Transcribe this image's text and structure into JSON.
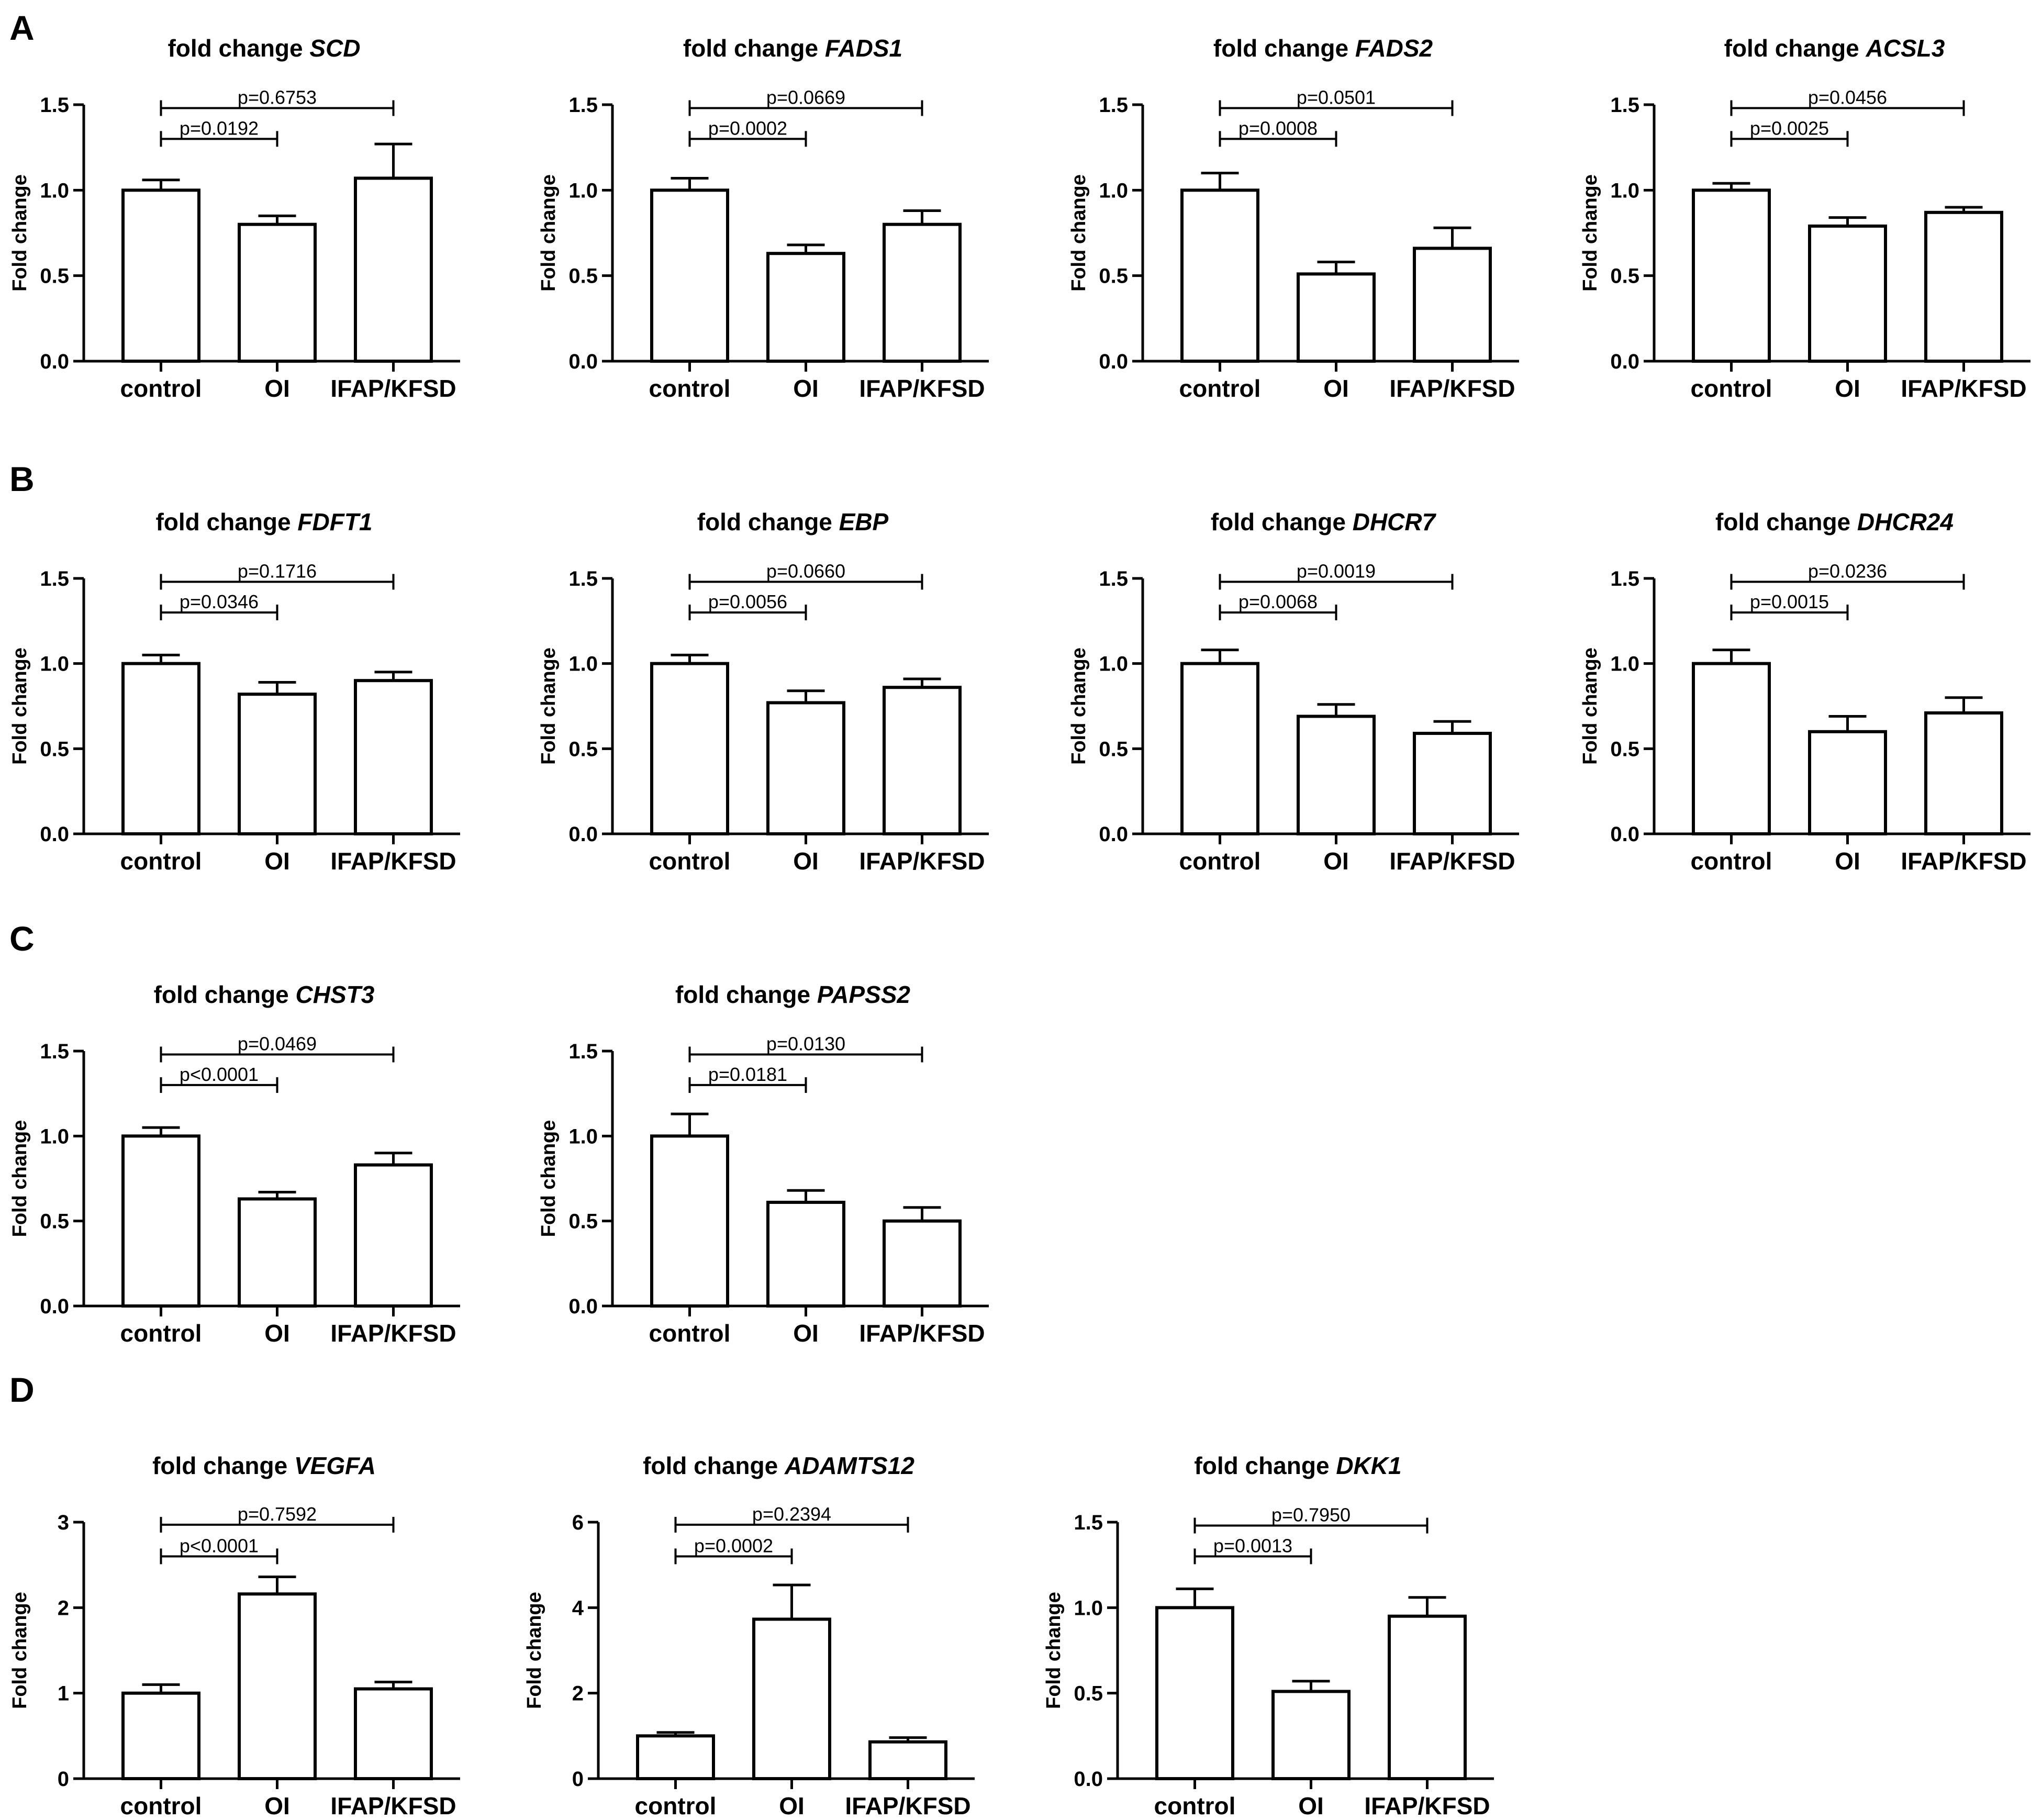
{
  "figure": {
    "panels": [
      "A",
      "B",
      "C",
      "D"
    ]
  },
  "chart_data": [
    {
      "type": "bar",
      "panel": "A",
      "title_prefix": "fold change",
      "gene": "SCD",
      "ylabel": "Fold change",
      "ylim": [
        0,
        1.5
      ],
      "yticks": [
        "0.0",
        "0.5",
        "1.0",
        "1.5"
      ],
      "categories": [
        "control",
        "OI",
        "IFAP/KFSD"
      ],
      "values": [
        1.0,
        0.8,
        1.07
      ],
      "errors": [
        0.06,
        0.05,
        0.2
      ],
      "comparisons": [
        {
          "label": "p=0.0192",
          "from": 0,
          "to": 1,
          "y": 1.3
        },
        {
          "label": "p=0.6753",
          "from": 0,
          "to": 2,
          "y": 1.48
        }
      ]
    },
    {
      "type": "bar",
      "panel": "A",
      "title_prefix": "fold change",
      "gene": "FADS1",
      "ylabel": "Fold change",
      "ylim": [
        0,
        1.5
      ],
      "yticks": [
        "0.0",
        "0.5",
        "1.0",
        "1.5"
      ],
      "categories": [
        "control",
        "OI",
        "IFAP/KFSD"
      ],
      "values": [
        1.0,
        0.63,
        0.8
      ],
      "errors": [
        0.07,
        0.05,
        0.08
      ],
      "comparisons": [
        {
          "label": "p=0.0002",
          "from": 0,
          "to": 1,
          "y": 1.3
        },
        {
          "label": "p=0.0669",
          "from": 0,
          "to": 2,
          "y": 1.48
        }
      ]
    },
    {
      "type": "bar",
      "panel": "A",
      "title_prefix": "fold change",
      "gene": "FADS2",
      "ylabel": "Fold change",
      "ylim": [
        0,
        1.5
      ],
      "yticks": [
        "0.0",
        "0.5",
        "1.0",
        "1.5"
      ],
      "categories": [
        "control",
        "OI",
        "IFAP/KFSD"
      ],
      "values": [
        1.0,
        0.51,
        0.66
      ],
      "errors": [
        0.1,
        0.07,
        0.12
      ],
      "comparisons": [
        {
          "label": "p=0.0008",
          "from": 0,
          "to": 1,
          "y": 1.3
        },
        {
          "label": "p=0.0501",
          "from": 0,
          "to": 2,
          "y": 1.48
        }
      ]
    },
    {
      "type": "bar",
      "panel": "A",
      "title_prefix": "fold change",
      "gene": "ACSL3",
      "ylabel": "Fold change",
      "ylim": [
        0,
        1.5
      ],
      "yticks": [
        "0.0",
        "0.5",
        "1.0",
        "1.5"
      ],
      "categories": [
        "control",
        "OI",
        "IFAP/KFSD"
      ],
      "values": [
        1.0,
        0.79,
        0.87
      ],
      "errors": [
        0.04,
        0.05,
        0.03
      ],
      "comparisons": [
        {
          "label": "p=0.0025",
          "from": 0,
          "to": 1,
          "y": 1.3
        },
        {
          "label": "p=0.0456",
          "from": 0,
          "to": 2,
          "y": 1.48
        }
      ]
    },
    {
      "type": "bar",
      "panel": "B",
      "title_prefix": "fold change",
      "gene": "FDFT1",
      "ylabel": "Fold change",
      "ylim": [
        0,
        1.5
      ],
      "yticks": [
        "0.0",
        "0.5",
        "1.0",
        "1.5"
      ],
      "categories": [
        "control",
        "OI",
        "IFAP/KFSD"
      ],
      "values": [
        1.0,
        0.82,
        0.9
      ],
      "errors": [
        0.05,
        0.07,
        0.05
      ],
      "comparisons": [
        {
          "label": "p=0.0346",
          "from": 0,
          "to": 1,
          "y": 1.3
        },
        {
          "label": "p=0.1716",
          "from": 0,
          "to": 2,
          "y": 1.48
        }
      ]
    },
    {
      "type": "bar",
      "panel": "B",
      "title_prefix": "fold change",
      "gene": "EBP",
      "ylabel": "Fold change",
      "ylim": [
        0,
        1.5
      ],
      "yticks": [
        "0.0",
        "0.5",
        "1.0",
        "1.5"
      ],
      "categories": [
        "control",
        "OI",
        "IFAP/KFSD"
      ],
      "values": [
        1.0,
        0.77,
        0.86
      ],
      "errors": [
        0.05,
        0.07,
        0.05
      ],
      "comparisons": [
        {
          "label": "p=0.0056",
          "from": 0,
          "to": 1,
          "y": 1.3
        },
        {
          "label": "p=0.0660",
          "from": 0,
          "to": 2,
          "y": 1.48
        }
      ]
    },
    {
      "type": "bar",
      "panel": "B",
      "title_prefix": "fold change",
      "gene": "DHCR7",
      "ylabel": "Fold change",
      "ylim": [
        0,
        1.5
      ],
      "yticks": [
        "0.0",
        "0.5",
        "1.0",
        "1.5"
      ],
      "categories": [
        "control",
        "OI",
        "IFAP/KFSD"
      ],
      "values": [
        1.0,
        0.69,
        0.59
      ],
      "errors": [
        0.08,
        0.07,
        0.07
      ],
      "comparisons": [
        {
          "label": "p=0.0068",
          "from": 0,
          "to": 1,
          "y": 1.3
        },
        {
          "label": "p=0.0019",
          "from": 0,
          "to": 2,
          "y": 1.48
        }
      ]
    },
    {
      "type": "bar",
      "panel": "B",
      "title_prefix": "fold change",
      "gene": "DHCR24",
      "ylabel": "Fold change",
      "ylim": [
        0,
        1.5
      ],
      "yticks": [
        "0.0",
        "0.5",
        "1.0",
        "1.5"
      ],
      "categories": [
        "control",
        "OI",
        "IFAP/KFSD"
      ],
      "values": [
        1.0,
        0.6,
        0.71
      ],
      "errors": [
        0.08,
        0.09,
        0.09
      ],
      "comparisons": [
        {
          "label": "p=0.0015",
          "from": 0,
          "to": 1,
          "y": 1.3
        },
        {
          "label": "p=0.0236",
          "from": 0,
          "to": 2,
          "y": 1.48
        }
      ]
    },
    {
      "type": "bar",
      "panel": "C",
      "title_prefix": "fold change",
      "gene": "CHST3",
      "ylabel": "Fold change",
      "ylim": [
        0,
        1.5
      ],
      "yticks": [
        "0.0",
        "0.5",
        "1.0",
        "1.5"
      ],
      "categories": [
        "control",
        "OI",
        "IFAP/KFSD"
      ],
      "values": [
        1.0,
        0.63,
        0.83
      ],
      "errors": [
        0.05,
        0.04,
        0.07
      ],
      "comparisons": [
        {
          "label": "p<0.0001",
          "from": 0,
          "to": 1,
          "y": 1.3
        },
        {
          "label": "p=0.0469",
          "from": 0,
          "to": 2,
          "y": 1.48
        }
      ]
    },
    {
      "type": "bar",
      "panel": "C",
      "title_prefix": "fold change",
      "gene": "PAPSS2",
      "ylabel": "Fold change",
      "ylim": [
        0,
        1.5
      ],
      "yticks": [
        "0.0",
        "0.5",
        "1.0",
        "1.5"
      ],
      "categories": [
        "control",
        "OI",
        "IFAP/KFSD"
      ],
      "values": [
        1.0,
        0.61,
        0.5
      ],
      "errors": [
        0.13,
        0.07,
        0.08
      ],
      "comparisons": [
        {
          "label": "p=0.0181",
          "from": 0,
          "to": 1,
          "y": 1.3
        },
        {
          "label": "p=0.0130",
          "from": 0,
          "to": 2,
          "y": 1.48
        }
      ]
    },
    {
      "type": "bar",
      "panel": "D",
      "title_prefix": "fold change",
      "gene": "VEGFA",
      "ylabel": "Fold change",
      "ylim": [
        0,
        3
      ],
      "yticks": [
        "0",
        "1",
        "2",
        "3"
      ],
      "categories": [
        "control",
        "OI",
        "IFAP/KFSD"
      ],
      "values": [
        1.0,
        2.16,
        1.05
      ],
      "errors": [
        0.1,
        0.2,
        0.08
      ],
      "comparisons": [
        {
          "label": "p<0.0001",
          "from": 0,
          "to": 1,
          "y": 2.6
        },
        {
          "label": "p=0.7592",
          "from": 0,
          "to": 2,
          "y": 2.97
        }
      ]
    },
    {
      "type": "bar",
      "panel": "D",
      "title_prefix": "fold change",
      "gene": "ADAMTS12",
      "ylabel": "Fold change",
      "ylim": [
        0,
        6
      ],
      "yticks": [
        "0",
        "2",
        "4",
        "6"
      ],
      "categories": [
        "control",
        "OI",
        "IFAP/KFSD"
      ],
      "values": [
        1.0,
        3.73,
        0.86
      ],
      "errors": [
        0.08,
        0.8,
        0.1
      ],
      "comparisons": [
        {
          "label": "p=0.0002",
          "from": 0,
          "to": 1,
          "y": 5.2
        },
        {
          "label": "p=0.2394",
          "from": 0,
          "to": 2,
          "y": 5.94
        }
      ]
    },
    {
      "type": "bar",
      "panel": "D",
      "title_prefix": "fold change",
      "gene": "DKK1",
      "ylabel": "Fold change",
      "ylim": [
        0,
        1.5
      ],
      "yticks": [
        "0.0",
        "0.5",
        "1.0",
        "1.5"
      ],
      "categories": [
        "control",
        "OI",
        "IFAP/KFSD"
      ],
      "values": [
        1.0,
        0.51,
        0.95
      ],
      "errors": [
        0.11,
        0.06,
        0.11
      ],
      "comparisons": [
        {
          "label": "p=0.0013",
          "from": 0,
          "to": 1,
          "y": 1.3
        },
        {
          "label": "p=0.7950",
          "from": 0,
          "to": 2,
          "y": 1.48
        }
      ]
    }
  ]
}
